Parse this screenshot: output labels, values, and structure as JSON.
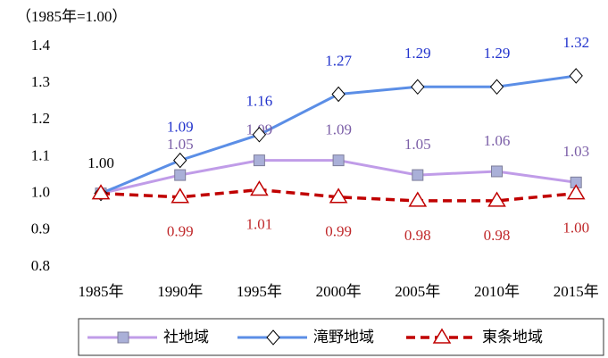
{
  "chart_data": {
    "type": "line",
    "subtitle": "（1985年=1.00）",
    "annotation": "1.00",
    "categories": [
      "1985年",
      "1990年",
      "1995年",
      "2000年",
      "2005年",
      "2010年",
      "2015年"
    ],
    "series": [
      {
        "name": "社地域",
        "color": "#c09ce8",
        "marker": "square",
        "label_color": "#7b5ea7",
        "values": [
          1.0,
          1.05,
          1.09,
          1.09,
          1.05,
          1.06,
          1.03
        ],
        "value_labels": [
          null,
          "1.05",
          "1.09",
          "1.09",
          "1.05",
          "1.06",
          "1.03"
        ]
      },
      {
        "name": "滝野地域",
        "color": "#5b8ee6",
        "marker": "diamond",
        "label_color": "#2233cc",
        "values": [
          1.0,
          1.09,
          1.16,
          1.27,
          1.29,
          1.29,
          1.32
        ],
        "value_labels": [
          null,
          "1.09",
          "1.16",
          "1.27",
          "1.29",
          "1.29",
          "1.32"
        ]
      },
      {
        "name": "東条地域",
        "color": "#c00000",
        "marker": "triangle",
        "dashed": true,
        "label_color": "#c0292b",
        "values": [
          1.0,
          0.99,
          1.01,
          0.99,
          0.98,
          0.98,
          1.0
        ],
        "value_labels": [
          null,
          "0.99",
          "1.01",
          "0.99",
          "0.98",
          "0.98",
          "1.00"
        ]
      }
    ],
    "ylim": [
      0.8,
      1.4
    ],
    "yticks": [
      0.8,
      0.9,
      {
        "value": 1,
        "label": "1.0"
      },
      1.1,
      1.2,
      1.3,
      1.4
    ],
    "grid": false,
    "legend": "bottom"
  }
}
